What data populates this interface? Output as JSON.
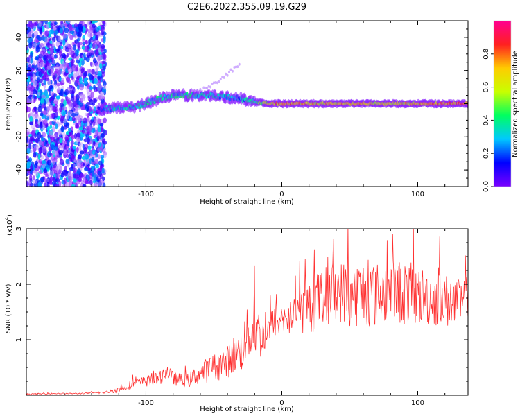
{
  "figure_title": "C2E6.2022.355.09.19.G29",
  "chart_data": [
    {
      "type": "heatmap",
      "title": "",
      "xlabel": "Height of straight line (km)",
      "ylabel": "Frequency (Hz)",
      "xlim": [
        -188,
        137
      ],
      "ylim": [
        -50,
        50
      ],
      "xticks": [
        -100,
        0,
        100
      ],
      "yticks": [
        -40,
        -20,
        0,
        20,
        40
      ],
      "colorbar": {
        "label": "Normalized spectral amplitude",
        "range": [
          0,
          1
        ],
        "ticks": [
          0.0,
          0.2,
          0.4,
          0.6,
          0.8
        ],
        "colormap": [
          "#ffffff",
          "#c9a8ff",
          "#7a00ff",
          "#0000ff",
          "#00c8ff",
          "#00ff60",
          "#c8ff00",
          "#ffcc00",
          "#ff2020",
          "#ff0090"
        ]
      },
      "features": {
        "noise_region_x": [
          -188,
          -130
        ],
        "signal_trace": [
          {
            "x": -135,
            "y": -3,
            "amp": 0.35
          },
          {
            "x": -125,
            "y": -3,
            "amp": 0.5
          },
          {
            "x": -110,
            "y": -2,
            "amp": 0.5
          },
          {
            "x": -100,
            "y": 0,
            "amp": 0.5
          },
          {
            "x": -90,
            "y": 3,
            "amp": 0.55
          },
          {
            "x": -80,
            "y": 5,
            "amp": 0.5
          },
          {
            "x": -70,
            "y": 5,
            "amp": 0.55
          },
          {
            "x": -60,
            "y": 5,
            "amp": 0.5
          },
          {
            "x": -50,
            "y": 5,
            "amp": 0.5
          },
          {
            "x": -40,
            "y": 4,
            "amp": 0.5
          },
          {
            "x": -30,
            "y": 3,
            "amp": 0.45
          },
          {
            "x": -20,
            "y": 1,
            "amp": 0.55
          },
          {
            "x": -10,
            "y": 0,
            "amp": 0.75
          },
          {
            "x": 0,
            "y": 0,
            "amp": 0.85
          },
          {
            "x": 20,
            "y": 0,
            "amp": 0.8
          },
          {
            "x": 40,
            "y": 0,
            "amp": 0.8
          },
          {
            "x": 60,
            "y": 0,
            "amp": 0.8
          },
          {
            "x": 80,
            "y": 0,
            "amp": 0.8
          },
          {
            "x": 100,
            "y": 0,
            "amp": 0.8
          },
          {
            "x": 120,
            "y": 0,
            "amp": 0.85
          },
          {
            "x": 137,
            "y": 0,
            "amp": 0.85
          }
        ],
        "faint_branch": [
          {
            "x": -60,
            "y": 8
          },
          {
            "x": -50,
            "y": 12
          },
          {
            "x": -40,
            "y": 18
          },
          {
            "x": -30,
            "y": 24
          }
        ]
      }
    },
    {
      "type": "line",
      "title": "",
      "xlabel": "Height of straight line (km)",
      "ylabel": "SNR (10 * v/v)",
      "y_multiplier_label": "(x10",
      "y_multiplier_exp": "4",
      "xlim": [
        -188,
        137
      ],
      "ylim": [
        0,
        3
      ],
      "xticks": [
        -100,
        0,
        100
      ],
      "yticks": [
        1,
        2,
        3
      ],
      "color": "#ff3030",
      "series": [
        {
          "x": [
            -188,
            -170,
            -150,
            -130,
            -120,
            -110,
            -100,
            -90,
            -85,
            -80,
            -70,
            -60,
            -50,
            -40,
            -35,
            -30,
            -25,
            -20,
            -15,
            -10,
            -5,
            0,
            10,
            20,
            30,
            40,
            50,
            60,
            70,
            80,
            90,
            100,
            110,
            120,
            130,
            137
          ],
          "values": [
            0.02,
            0.03,
            0.03,
            0.05,
            0.1,
            0.2,
            0.25,
            0.3,
            0.45,
            0.3,
            0.25,
            0.4,
            0.5,
            0.6,
            0.75,
            0.8,
            1.1,
            1.3,
            1.0,
            1.15,
            1.35,
            1.3,
            1.45,
            1.6,
            1.75,
            1.9,
            1.8,
            1.85,
            1.8,
            1.9,
            1.85,
            1.8,
            1.75,
            1.7,
            1.65,
            1.7
          ],
          "noise_amplitude": [
            0.01,
            0.01,
            0.01,
            0.02,
            0.05,
            0.08,
            0.1,
            0.12,
            0.15,
            0.12,
            0.12,
            0.2,
            0.25,
            0.3,
            0.35,
            0.4,
            0.5,
            0.6,
            0.35,
            0.3,
            0.3,
            0.25,
            0.35,
            0.5,
            0.55,
            0.55,
            0.6,
            0.6,
            0.6,
            0.55,
            0.6,
            0.55,
            0.5,
            0.5,
            0.45,
            0.45
          ]
        }
      ]
    }
  ]
}
